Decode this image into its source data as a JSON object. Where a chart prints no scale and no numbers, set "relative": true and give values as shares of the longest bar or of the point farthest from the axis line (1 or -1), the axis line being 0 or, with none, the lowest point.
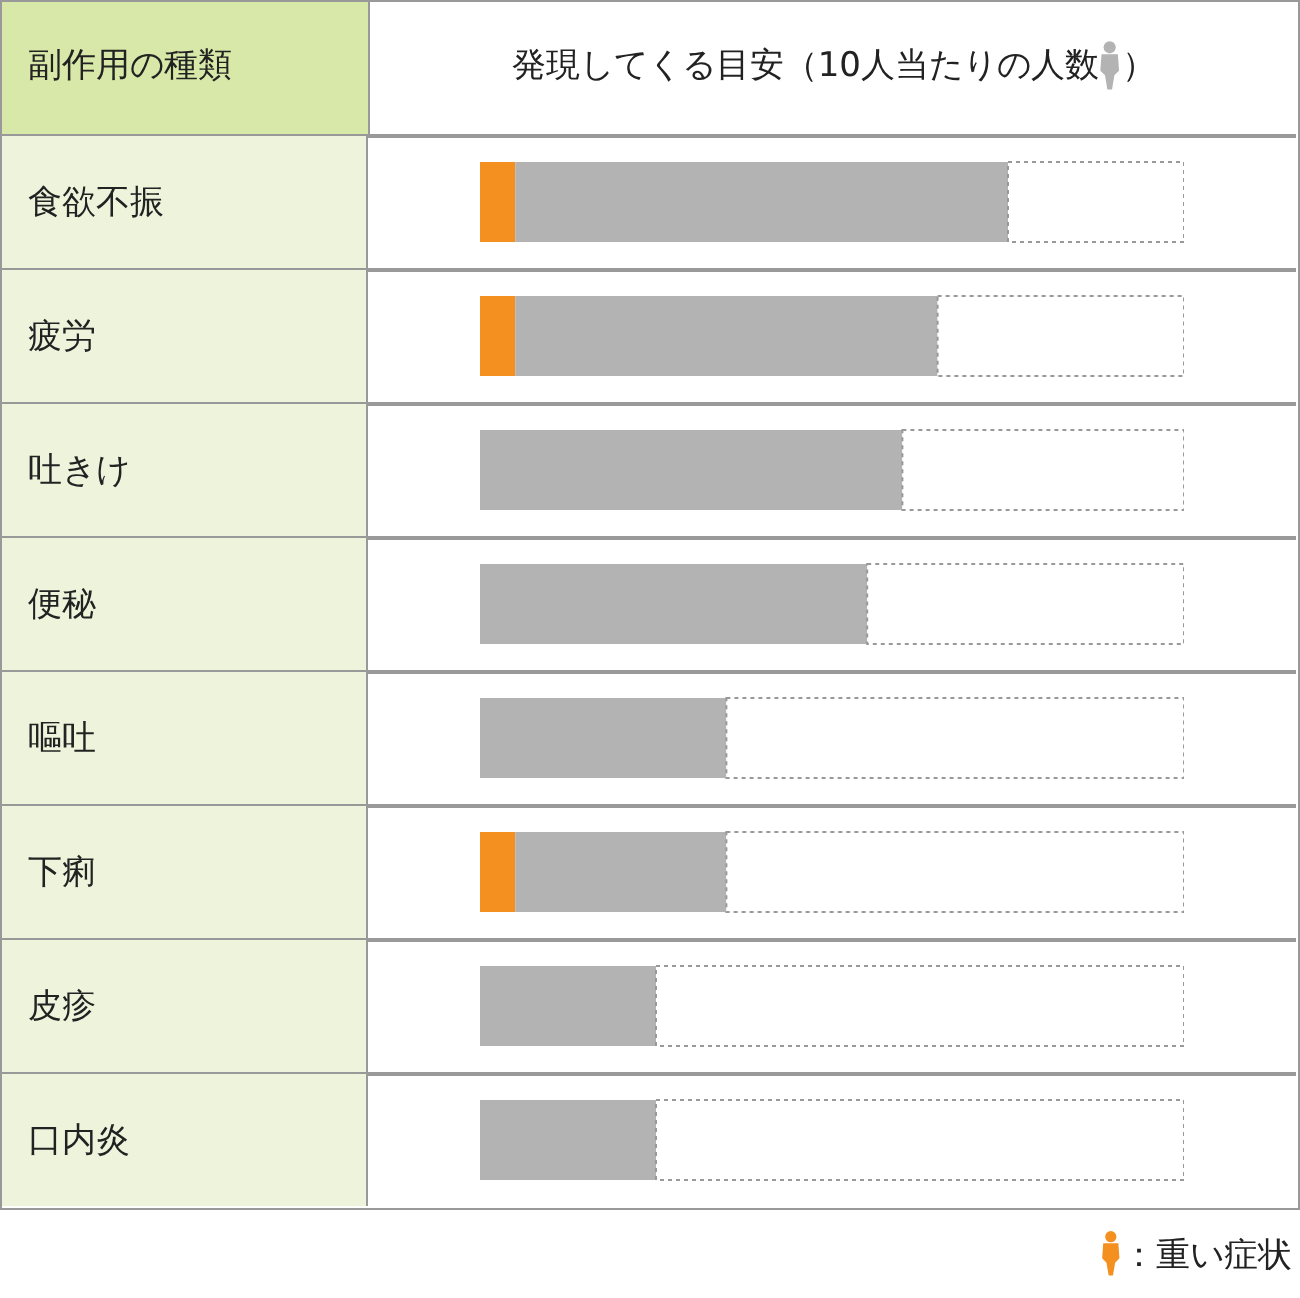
{
  "chart_data": {
    "type": "bar",
    "orientation": "horizontal",
    "stacked": true,
    "relative": true,
    "title": "発現してくる目安（10人当たりの人数）",
    "ylabel": "副作用の種類",
    "categories": [
      "食欲不振",
      "疲労",
      "吐きけ",
      "便秘",
      "嘔吐",
      "下痢",
      "皮疹",
      "口内炎"
    ],
    "series": [
      {
        "name": "：重い症状",
        "color": "#f39020",
        "values": [
          0.05,
          0.05,
          0,
          0,
          0,
          0.05,
          0,
          0
        ]
      },
      {
        "color": "#b3b3b3",
        "values": [
          0.7,
          0.6,
          0.6,
          0.55,
          0.35,
          0.3,
          0.25,
          0.25
        ]
      },
      {
        "color": "#ffffff",
        "values": [
          0.25,
          0.35,
          0.4,
          0.45,
          0.65,
          0.65,
          0.75,
          0.75
        ]
      }
    ],
    "legend": "bottom right"
  }
}
